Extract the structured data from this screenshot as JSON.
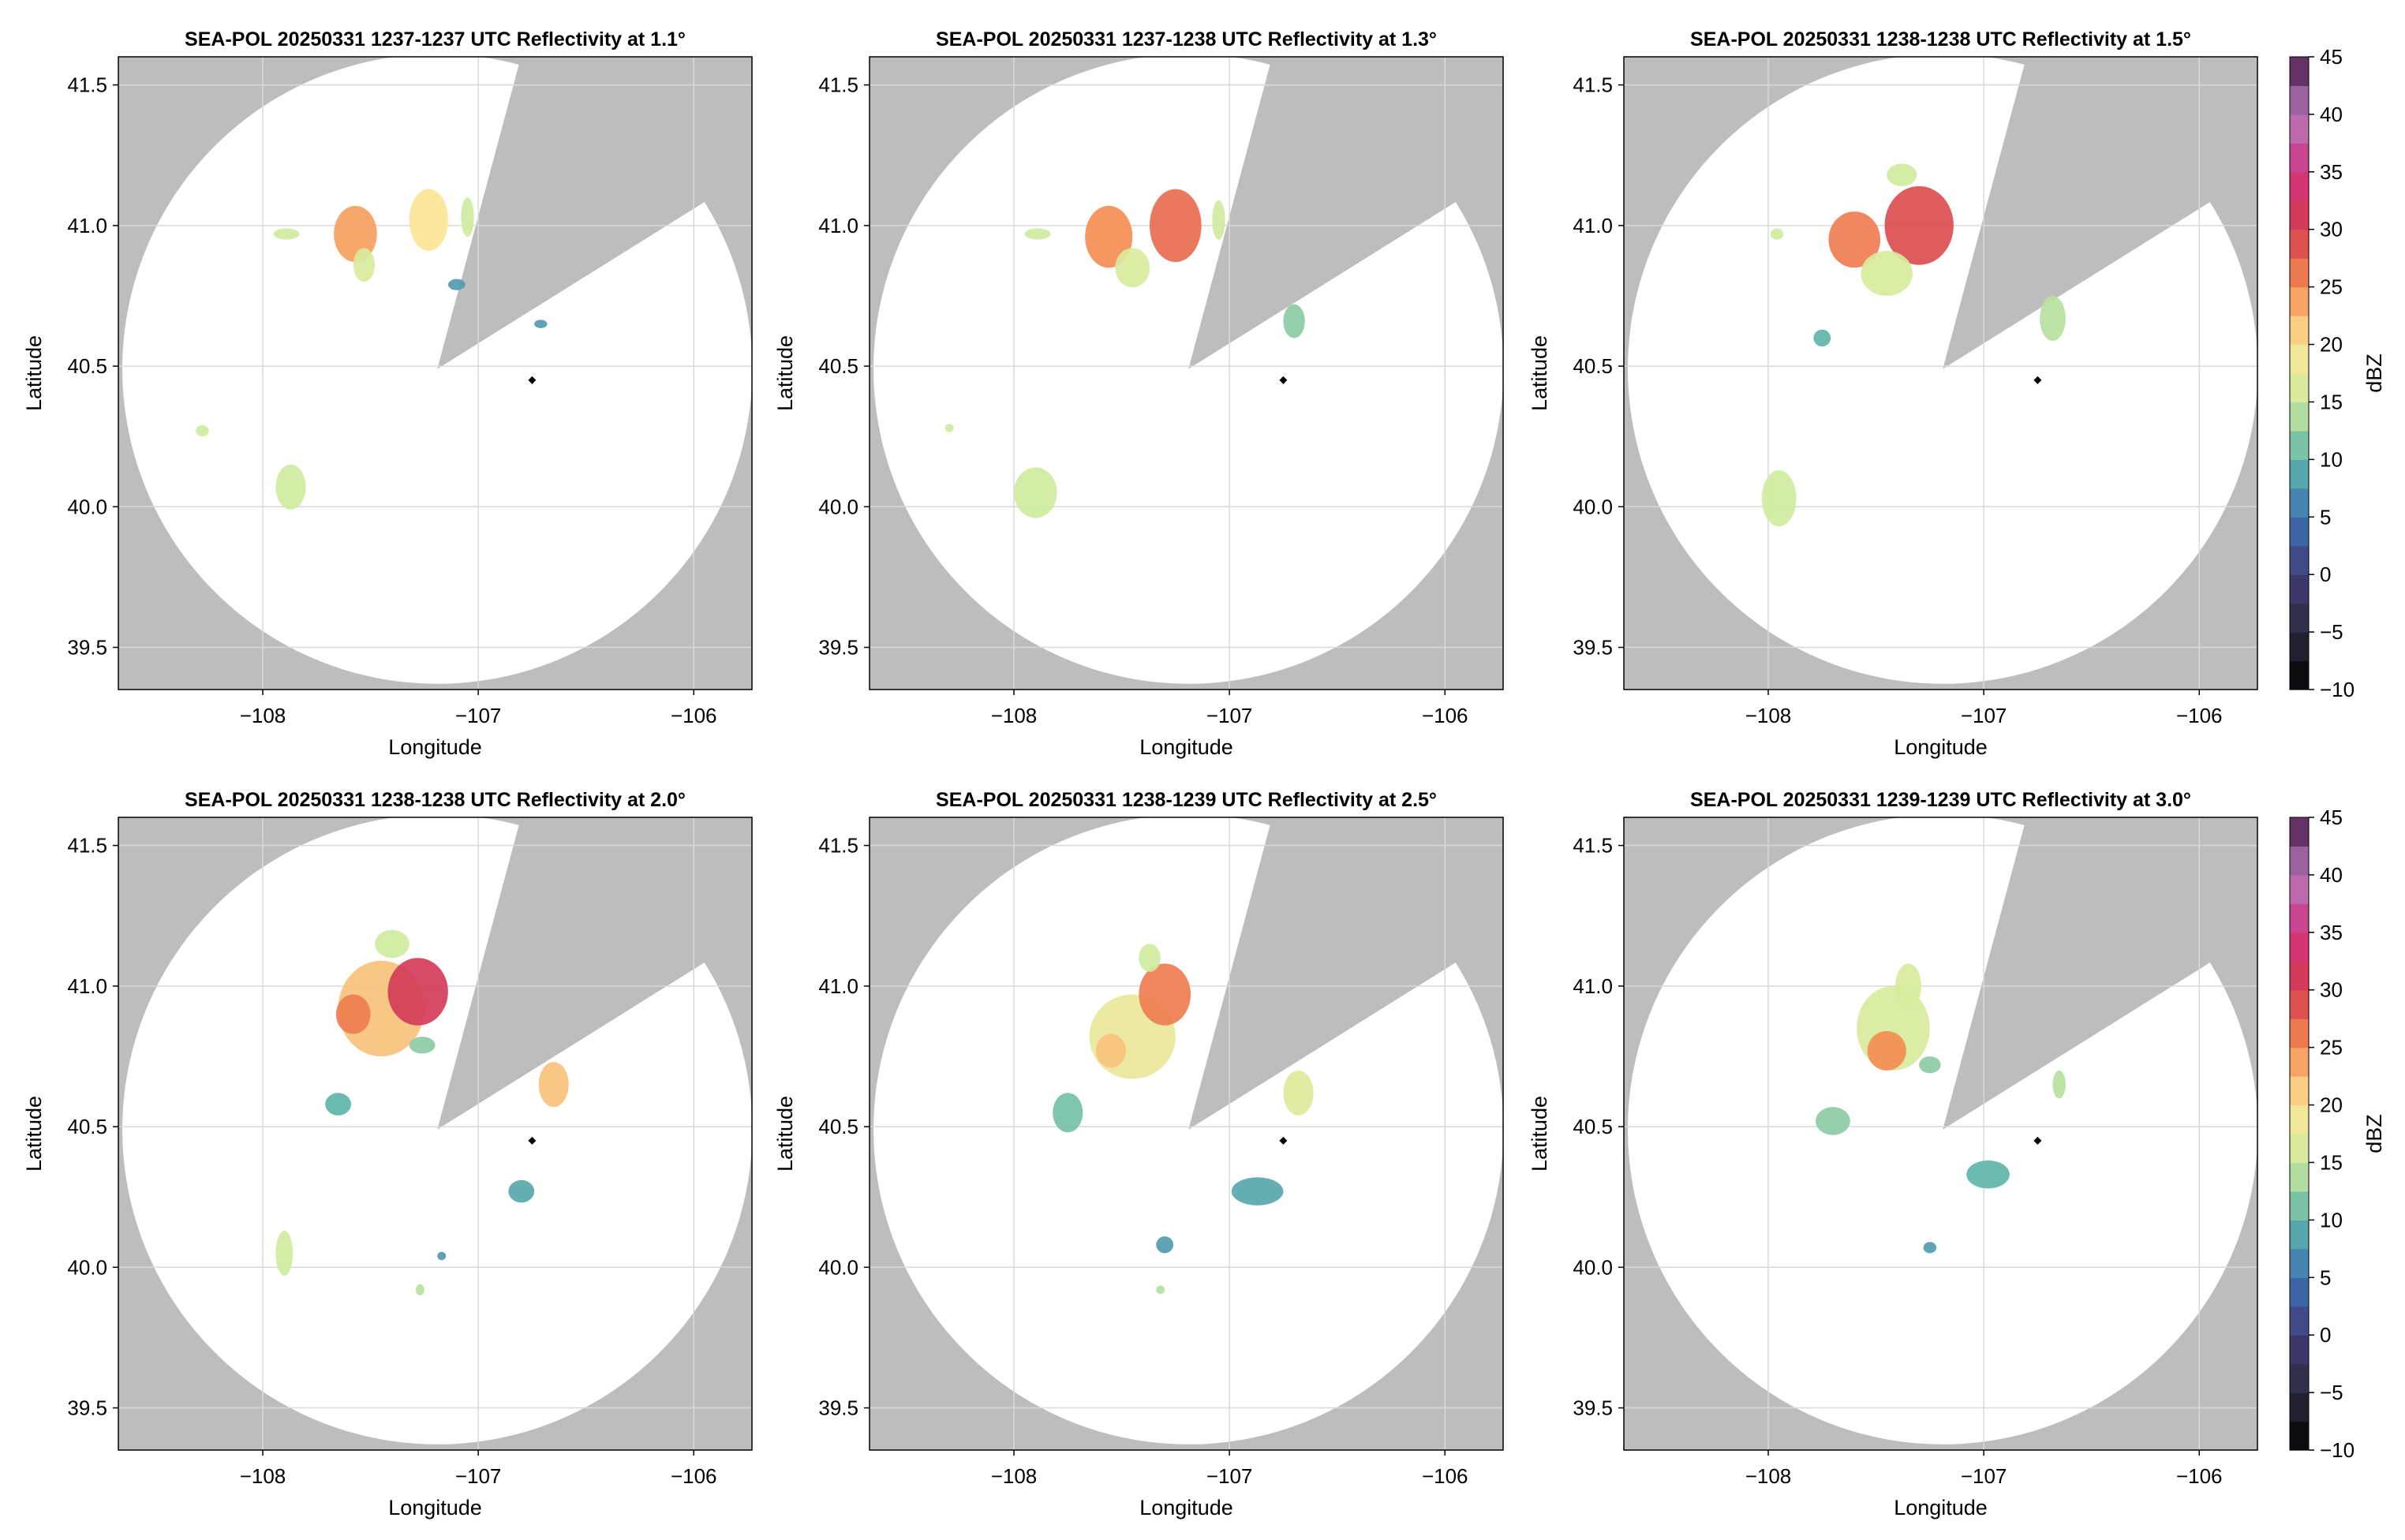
{
  "colors": {
    "out_of_range": "#bdbdbd",
    "in_range": "#ffffff",
    "grid": "#d9d9d9",
    "radar_site": "#000000"
  },
  "chart_data": [
    {
      "type": "heatmap",
      "title": "SEA-POL 20250331 1237-1237 UTC Reflectivity at 1.1°",
      "xlabel": "Longitude",
      "ylabel": "Latitude",
      "xlim": [
        -108.67,
        -105.73
      ],
      "ylim": [
        39.35,
        41.6
      ],
      "xticks": [
        "−108",
        "−107",
        "−106"
      ],
      "yticks": [
        "39.5",
        "40.0",
        "40.5",
        "41.0",
        "41.5"
      ],
      "grid": true,
      "radar_site": {
        "lon": -106.75,
        "lat": 40.45
      },
      "coverage": {
        "center_lon": -107.19,
        "center_lat": 40.49,
        "range_deg_lat": 1.12,
        "blocked_sector_deg": [
          15,
          58
        ]
      },
      "echoes": [
        {
          "lon": -107.57,
          "lat": 40.97,
          "dbz": 24,
          "w": 0.1,
          "h": 0.1
        },
        {
          "lon": -107.23,
          "lat": 41.02,
          "dbz": 20,
          "w": 0.09,
          "h": 0.11
        },
        {
          "lon": -107.53,
          "lat": 40.86,
          "dbz": 16,
          "w": 0.05,
          "h": 0.06
        },
        {
          "lon": -107.05,
          "lat": 41.03,
          "dbz": 15,
          "w": 0.03,
          "h": 0.07
        },
        {
          "lon": -107.1,
          "lat": 40.79,
          "dbz": 8,
          "w": 0.04,
          "h": 0.02
        },
        {
          "lon": -107.89,
          "lat": 40.97,
          "dbz": 15,
          "w": 0.06,
          "h": 0.02
        },
        {
          "lon": -107.87,
          "lat": 40.07,
          "dbz": 15,
          "w": 0.07,
          "h": 0.08
        },
        {
          "lon": -108.28,
          "lat": 40.27,
          "dbz": 15,
          "w": 0.03,
          "h": 0.02
        },
        {
          "lon": -106.71,
          "lat": 40.65,
          "dbz": 8,
          "w": 0.03,
          "h": 0.015
        }
      ]
    },
    {
      "type": "heatmap",
      "title": "SEA-POL 20250331 1237-1238 UTC Reflectivity at 1.3°",
      "xlabel": "Longitude",
      "ylabel": "Latitude",
      "xlim": [
        -108.67,
        -105.73
      ],
      "ylim": [
        39.35,
        41.6
      ],
      "xticks": [
        "−108",
        "−107",
        "−106"
      ],
      "yticks": [
        "39.5",
        "40.0",
        "40.5",
        "41.0",
        "41.5"
      ],
      "grid": true,
      "radar_site": {
        "lon": -106.75,
        "lat": 40.45
      },
      "coverage": {
        "center_lon": -107.19,
        "center_lat": 40.49,
        "range_deg_lat": 1.12,
        "blocked_sector_deg": [
          15,
          58
        ]
      },
      "echoes": [
        {
          "lon": -107.56,
          "lat": 40.96,
          "dbz": 25,
          "w": 0.11,
          "h": 0.11
        },
        {
          "lon": -107.25,
          "lat": 41.0,
          "dbz": 27,
          "w": 0.12,
          "h": 0.13
        },
        {
          "lon": -107.45,
          "lat": 40.85,
          "dbz": 16,
          "w": 0.08,
          "h": 0.07
        },
        {
          "lon": -107.05,
          "lat": 41.02,
          "dbz": 15,
          "w": 0.03,
          "h": 0.07
        },
        {
          "lon": -106.7,
          "lat": 40.66,
          "dbz": 12,
          "w": 0.05,
          "h": 0.06
        },
        {
          "lon": -107.89,
          "lat": 40.97,
          "dbz": 15,
          "w": 0.06,
          "h": 0.02
        },
        {
          "lon": -107.9,
          "lat": 40.05,
          "dbz": 15,
          "w": 0.1,
          "h": 0.09
        },
        {
          "lon": -108.3,
          "lat": 40.28,
          "dbz": 15,
          "w": 0.02,
          "h": 0.015
        }
      ]
    },
    {
      "type": "heatmap",
      "title": "SEA-POL 20250331 1238-1238 UTC Reflectivity at 1.5°",
      "xlabel": "Longitude",
      "ylabel": "Latitude",
      "xlim": [
        -108.67,
        -105.73
      ],
      "ylim": [
        39.35,
        41.6
      ],
      "xticks": [
        "−108",
        "−107",
        "−106"
      ],
      "yticks": [
        "39.5",
        "40.0",
        "40.5",
        "41.0",
        "41.5"
      ],
      "grid": true,
      "radar_site": {
        "lon": -106.75,
        "lat": 40.45
      },
      "coverage": {
        "center_lon": -107.19,
        "center_lat": 40.49,
        "range_deg_lat": 1.12,
        "blocked_sector_deg": [
          15,
          58
        ]
      },
      "echoes": [
        {
          "lon": -107.6,
          "lat": 40.95,
          "dbz": 26,
          "w": 0.12,
          "h": 0.1
        },
        {
          "lon": -107.3,
          "lat": 41.0,
          "dbz": 29,
          "w": 0.16,
          "h": 0.14
        },
        {
          "lon": -107.45,
          "lat": 40.83,
          "dbz": 16,
          "w": 0.12,
          "h": 0.08
        },
        {
          "lon": -107.38,
          "lat": 41.18,
          "dbz": 15,
          "w": 0.07,
          "h": 0.04
        },
        {
          "lon": -106.68,
          "lat": 40.67,
          "dbz": 14,
          "w": 0.06,
          "h": 0.08
        },
        {
          "lon": -107.75,
          "lat": 40.6,
          "dbz": 10,
          "w": 0.04,
          "h": 0.03
        },
        {
          "lon": -107.95,
          "lat": 40.03,
          "dbz": 15,
          "w": 0.08,
          "h": 0.1
        },
        {
          "lon": -107.96,
          "lat": 40.97,
          "dbz": 15,
          "w": 0.03,
          "h": 0.02
        }
      ]
    },
    {
      "type": "heatmap",
      "title": "SEA-POL 20250331 1238-1238 UTC Reflectivity at 2.0°",
      "xlabel": "Longitude",
      "ylabel": "Latitude",
      "xlim": [
        -108.67,
        -105.73
      ],
      "ylim": [
        39.35,
        41.6
      ],
      "xticks": [
        "−108",
        "−107",
        "−106"
      ],
      "yticks": [
        "39.5",
        "40.0",
        "40.5",
        "41.0",
        "41.5"
      ],
      "grid": true,
      "radar_site": {
        "lon": -106.75,
        "lat": 40.45
      },
      "coverage": {
        "center_lon": -107.19,
        "center_lat": 40.49,
        "range_deg_lat": 1.12,
        "blocked_sector_deg": [
          15,
          58
        ]
      },
      "echoes": [
        {
          "lon": -107.45,
          "lat": 40.92,
          "dbz": 22,
          "w": 0.2,
          "h": 0.17
        },
        {
          "lon": -107.28,
          "lat": 40.98,
          "dbz": 31,
          "w": 0.14,
          "h": 0.12
        },
        {
          "lon": -107.58,
          "lat": 40.9,
          "dbz": 26,
          "w": 0.08,
          "h": 0.07
        },
        {
          "lon": -107.4,
          "lat": 41.15,
          "dbz": 15,
          "w": 0.08,
          "h": 0.05
        },
        {
          "lon": -107.26,
          "lat": 40.79,
          "dbz": 12,
          "w": 0.06,
          "h": 0.03
        },
        {
          "lon": -106.65,
          "lat": 40.65,
          "dbz": 22,
          "w": 0.07,
          "h": 0.08
        },
        {
          "lon": -107.65,
          "lat": 40.58,
          "dbz": 10,
          "w": 0.06,
          "h": 0.04
        },
        {
          "lon": -106.8,
          "lat": 40.27,
          "dbz": 9,
          "w": 0.06,
          "h": 0.04
        },
        {
          "lon": -107.9,
          "lat": 40.05,
          "dbz": 15,
          "w": 0.04,
          "h": 0.08
        },
        {
          "lon": -107.17,
          "lat": 40.04,
          "dbz": 8,
          "w": 0.02,
          "h": 0.015
        },
        {
          "lon": -107.27,
          "lat": 39.92,
          "dbz": 14,
          "w": 0.02,
          "h": 0.02
        }
      ]
    },
    {
      "type": "heatmap",
      "title": "SEA-POL 20250331 1238-1239 UTC Reflectivity at 2.5°",
      "xlabel": "Longitude",
      "ylabel": "Latitude",
      "xlim": [
        -108.67,
        -105.73
      ],
      "ylim": [
        39.35,
        41.6
      ],
      "xticks": [
        "−108",
        "−107",
        "−106"
      ],
      "yticks": [
        "39.5",
        "40.0",
        "40.5",
        "41.0",
        "41.5"
      ],
      "grid": true,
      "radar_site": {
        "lon": -106.75,
        "lat": 40.45
      },
      "coverage": {
        "center_lon": -107.19,
        "center_lat": 40.49,
        "range_deg_lat": 1.12,
        "blocked_sector_deg": [
          15,
          58
        ]
      },
      "echoes": [
        {
          "lon": -107.45,
          "lat": 40.82,
          "dbz": 18,
          "w": 0.2,
          "h": 0.15
        },
        {
          "lon": -107.3,
          "lat": 40.97,
          "dbz": 26,
          "w": 0.12,
          "h": 0.11
        },
        {
          "lon": -107.55,
          "lat": 40.77,
          "dbz": 22,
          "w": 0.07,
          "h": 0.06
        },
        {
          "lon": -107.37,
          "lat": 41.1,
          "dbz": 15,
          "w": 0.05,
          "h": 0.05
        },
        {
          "lon": -106.68,
          "lat": 40.62,
          "dbz": 17,
          "w": 0.07,
          "h": 0.08
        },
        {
          "lon": -107.75,
          "lat": 40.55,
          "dbz": 11,
          "w": 0.07,
          "h": 0.07
        },
        {
          "lon": -106.87,
          "lat": 40.27,
          "dbz": 9,
          "w": 0.12,
          "h": 0.05
        },
        {
          "lon": -107.3,
          "lat": 40.08,
          "dbz": 8,
          "w": 0.04,
          "h": 0.03
        },
        {
          "lon": -107.32,
          "lat": 39.92,
          "dbz": 14,
          "w": 0.02,
          "h": 0.015
        }
      ]
    },
    {
      "type": "heatmap",
      "title": "SEA-POL 20250331 1239-1239 UTC Reflectivity at 3.0°",
      "xlabel": "Longitude",
      "ylabel": "Latitude",
      "xlim": [
        -108.67,
        -105.73
      ],
      "ylim": [
        39.35,
        41.6
      ],
      "xticks": [
        "−108",
        "−107",
        "−106"
      ],
      "yticks": [
        "39.5",
        "40.0",
        "40.5",
        "41.0",
        "41.5"
      ],
      "grid": true,
      "radar_site": {
        "lon": -106.75,
        "lat": 40.45
      },
      "coverage": {
        "center_lon": -107.19,
        "center_lat": 40.49,
        "range_deg_lat": 1.12,
        "blocked_sector_deg": [
          15,
          58
        ]
      },
      "echoes": [
        {
          "lon": -107.42,
          "lat": 40.85,
          "dbz": 16,
          "w": 0.17,
          "h": 0.15
        },
        {
          "lon": -107.45,
          "lat": 40.77,
          "dbz": 25,
          "w": 0.09,
          "h": 0.07
        },
        {
          "lon": -107.35,
          "lat": 41.0,
          "dbz": 16,
          "w": 0.06,
          "h": 0.08
        },
        {
          "lon": -107.25,
          "lat": 40.72,
          "dbz": 12,
          "w": 0.05,
          "h": 0.03
        },
        {
          "lon": -107.7,
          "lat": 40.52,
          "dbz": 12,
          "w": 0.08,
          "h": 0.05
        },
        {
          "lon": -106.98,
          "lat": 40.33,
          "dbz": 10,
          "w": 0.1,
          "h": 0.05
        },
        {
          "lon": -106.65,
          "lat": 40.65,
          "dbz": 14,
          "w": 0.03,
          "h": 0.05
        },
        {
          "lon": -107.25,
          "lat": 40.07,
          "dbz": 8,
          "w": 0.03,
          "h": 0.02
        }
      ]
    }
  ],
  "colorbar": {
    "label": "dBZ",
    "min": -10,
    "max": 45,
    "ticks": [
      "45",
      "40",
      "35",
      "30",
      "25",
      "20",
      "15",
      "10",
      "5",
      "0",
      "−5",
      "−10"
    ],
    "stops": [
      {
        "v": -10,
        "c": "#000000"
      },
      {
        "v": -5,
        "c": "#2b2b3f"
      },
      {
        "v": 0,
        "c": "#423e78"
      },
      {
        "v": 5,
        "c": "#3d73b7"
      },
      {
        "v": 10,
        "c": "#5fb5a9"
      },
      {
        "v": 15,
        "c": "#cfec9f"
      },
      {
        "v": 20,
        "c": "#fce596"
      },
      {
        "v": 25,
        "c": "#f58d52"
      },
      {
        "v": 30,
        "c": "#d53e4f"
      },
      {
        "v": 35,
        "c": "#d1337f"
      },
      {
        "v": 40,
        "c": "#b57bbd"
      },
      {
        "v": 45,
        "c": "#4a1a4a"
      }
    ]
  }
}
